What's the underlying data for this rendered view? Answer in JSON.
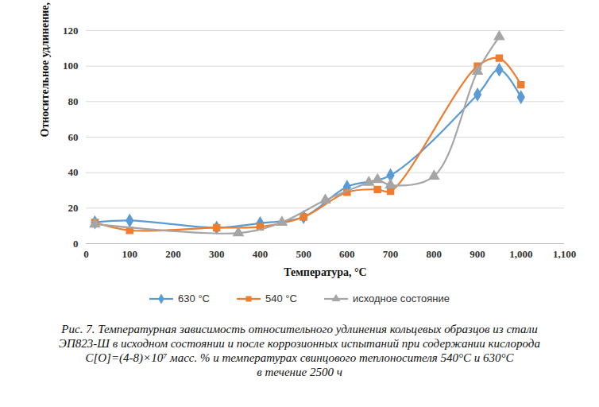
{
  "chart_data": {
    "type": "line",
    "caption": [
      "Рис. 7. Температурная зависимость относительного удлинения кольцевых образцов из стали",
      "ЭП823-Ш в исходном состоянии и после коррозионных испытаний при содержании кислорода",
      "C[O]=(4-8)×10⁷ масс. % и температурах свинцового теплоносителя 540°С и 630°С",
      "в течение 2500 ч"
    ],
    "x_label": "Температура, °С",
    "y_label": "Относительное удлинение, %",
    "xlim": [
      0,
      1100
    ],
    "xticks": [
      0,
      100,
      200,
      300,
      400,
      500,
      600,
      700,
      800,
      900,
      1000,
      1100
    ],
    "ylim": [
      0,
      120
    ],
    "yticks": [
      0,
      20,
      40,
      60,
      80,
      100,
      120
    ],
    "grid": true,
    "legend": "bottom",
    "series": [
      {
        "name": "630 °С",
        "color": "#5b9bd5",
        "marker": "diamond",
        "x": [
          20,
          100,
          300,
          400,
          500,
          600,
          700,
          900,
          950,
          1000
        ],
        "values": [
          12,
          13,
          9,
          11.5,
          15,
          32,
          38.5,
          84,
          98,
          82.5
        ]
      },
      {
        "name": "540 °С",
        "color": "#ed7d31",
        "marker": "square",
        "x": [
          20,
          100,
          300,
          400,
          500,
          600,
          670,
          700,
          900,
          950,
          1000
        ],
        "values": [
          12,
          7.5,
          9,
          9.5,
          15,
          29,
          30.5,
          29.5,
          100,
          104.5,
          89.5
        ]
      },
      {
        "name": "исходное состояние",
        "color": "#a5a5a5",
        "marker": "triangle",
        "x": [
          20,
          350,
          450,
          550,
          650,
          670,
          700,
          800,
          900,
          950
        ],
        "values": [
          11,
          6,
          12,
          24.5,
          34.5,
          36,
          33,
          38,
          97,
          116.5
        ]
      }
    ]
  }
}
